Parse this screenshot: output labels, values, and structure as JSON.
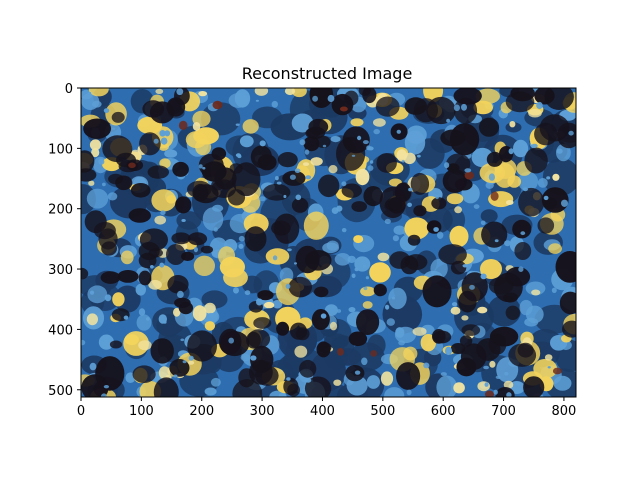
{
  "chart_data": {
    "type": "heatmap",
    "title": "Reconstructed Image",
    "xlabel": "",
    "ylabel": "",
    "xlim": [
      0,
      820
    ],
    "ylim": [
      512,
      0
    ],
    "x_ticks": [
      0,
      100,
      200,
      300,
      400,
      500,
      600,
      700,
      800
    ],
    "y_ticks": [
      0,
      100,
      200,
      300,
      400,
      500
    ],
    "image_width": 820,
    "image_height": 512,
    "grid": false,
    "palette": {
      "dark": "#16121c",
      "navy": "#1c3a63",
      "blue": "#2d6db0",
      "lightblue": "#5d9fd6",
      "yellow": "#f3d35c",
      "pale": "#f2e3a0",
      "brown": "#6e2a1c"
    }
  }
}
